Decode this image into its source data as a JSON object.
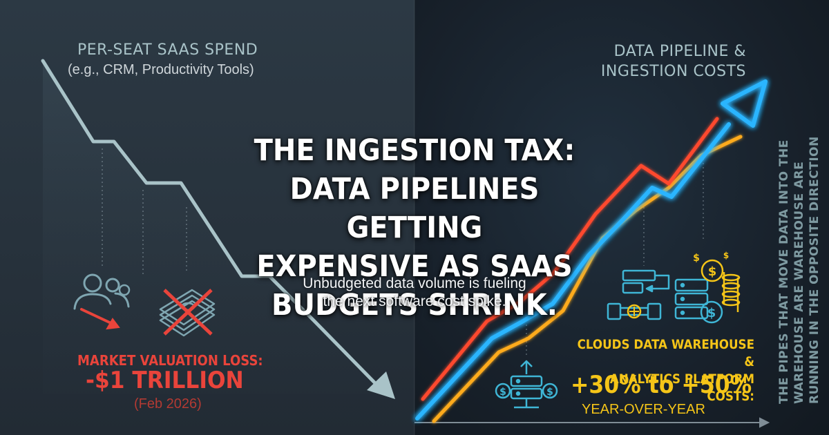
{
  "left": {
    "title": "PER-SEAT SAAS SPEND",
    "subtitle": "(e.g., CRM, Productivity Tools)",
    "loss_label": "MARKET VALUATION LOSS:",
    "loss_value": "-$1 TRILLION",
    "loss_date": "(Feb 2026)",
    "icons": [
      "users-down-icon",
      "cash-crossed-icon"
    ]
  },
  "right": {
    "title_line1": "DATA PIPELINE &",
    "title_line2": "INGESTION COSTS",
    "cost_label_line1": "CLOUDS DATA WAREHOUSE &",
    "cost_label_line2": "ANALYTICS PLATFORM COSTS:",
    "cost_value": "+30% to +50%",
    "cost_period": "YEAR-OVER-YEAR",
    "vertical_note_line1": "THE PIPES THAT MOVE DATA INTO THE",
    "vertical_note_line2": "WAREHOUSE ARE WAREHOUSE  ARE",
    "vertical_note_line3": "RUNNING IN THE OPPOSITE DIRECTION",
    "icons": [
      "pipeline-icon",
      "server-coins-icon",
      "server-dollar-icon"
    ]
  },
  "center": {
    "headline_line1": "THE INGESTION TAX:",
    "headline_line2": "DATA PIPELINES GETTING",
    "headline_line3": "EXPENSIVE AS SAAS",
    "headline_line4": "BUDGETS SHRINK.",
    "subline_line1": "Unbudgeted data volume is fueling",
    "subline_line2": "the next software cost spike."
  },
  "colors": {
    "decline_line": "#a9c3c8",
    "loss_red": "#e9443b",
    "neon_blue": "#2bb5ff",
    "neon_red": "#ff4a2e",
    "neon_orange": "#ffab1f",
    "gold": "#f5c518"
  }
}
